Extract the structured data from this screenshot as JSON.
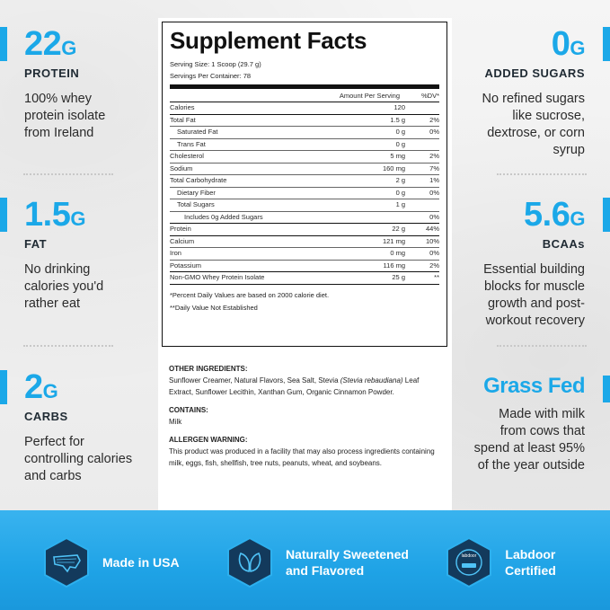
{
  "left_stats": [
    {
      "value": "22",
      "unit": "G",
      "label": "PROTEIN",
      "desc": [
        "100% whey",
        "protein isolate",
        "from Ireland"
      ]
    },
    {
      "value": "1.5",
      "unit": "G",
      "label": "FAT",
      "desc": [
        "No drinking",
        "calories you'd",
        "rather eat"
      ]
    },
    {
      "value": "2",
      "unit": "G",
      "label": "CARBS",
      "desc": [
        "Perfect for",
        "controlling calories",
        "and carbs"
      ]
    }
  ],
  "right_stats": [
    {
      "value": "0",
      "unit": "G",
      "label": "ADDED SUGARS",
      "desc": [
        "No refined sugars",
        "like sucrose,",
        "dextrose, or corn",
        "syrup"
      ]
    },
    {
      "value": "5.6",
      "unit": "G",
      "label": "BCAAs",
      "desc": [
        "Essential building",
        "blocks for muscle",
        "growth and post-",
        "workout recovery"
      ]
    },
    {
      "value": "Grass Fed",
      "unit": "",
      "label": "",
      "desc": [
        "Made with milk",
        "from cows that",
        "spend at least 95%",
        "of the year outside"
      ]
    }
  ],
  "facts": {
    "title": "Supplement Facts",
    "serving_size": "Serving Size: 1 Scoop (29.7 g)",
    "servings_per_container": "Servings Per Container: 78",
    "col_amount": "Amount Per Serving",
    "col_dv": "%DV*",
    "rows": [
      {
        "name": "Calories",
        "amount": "120",
        "dv": "",
        "indent": 0,
        "thick": true
      },
      {
        "name": "Total Fat",
        "amount": "1.5 g",
        "dv": "2%",
        "indent": 0,
        "thick": false
      },
      {
        "name": "Saturated Fat",
        "amount": "0 g",
        "dv": "0%",
        "indent": 1,
        "thick": false
      },
      {
        "name": "Trans Fat",
        "amount": "0 g",
        "dv": "",
        "indent": 1,
        "thick": false
      },
      {
        "name": "Cholesterol",
        "amount": "5 mg",
        "dv": "2%",
        "indent": 0,
        "thick": false
      },
      {
        "name": "Sodium",
        "amount": "160 mg",
        "dv": "7%",
        "indent": 0,
        "thick": false
      },
      {
        "name": "Total Carbohydrate",
        "amount": "2 g",
        "dv": "1%",
        "indent": 0,
        "thick": false
      },
      {
        "name": "Dietary Fiber",
        "amount": "0 g",
        "dv": "0%",
        "indent": 1,
        "thick": false
      },
      {
        "name": "Total Sugars",
        "amount": "1 g",
        "dv": "",
        "indent": 1,
        "thick": false
      },
      {
        "name": "Includes 0g Added Sugars",
        "amount": "",
        "dv": "0%",
        "indent": 2,
        "thick": true
      },
      {
        "name": "Protein",
        "amount": "22 g",
        "dv": "44%",
        "indent": 0,
        "thick": true
      },
      {
        "name": "Calcium",
        "amount": "121 mg",
        "dv": "10%",
        "indent": 0,
        "thick": false
      },
      {
        "name": "Iron",
        "amount": "0 mg",
        "dv": "0%",
        "indent": 0,
        "thick": false
      },
      {
        "name": "Potassium",
        "amount": "116 mg",
        "dv": "2%",
        "indent": 0,
        "thick": true
      },
      {
        "name": "Non-GMO Whey Protein Isolate",
        "amount": "25 g",
        "dv": "**",
        "indent": 0,
        "thick": true
      }
    ],
    "footnote1": "*Percent Daily Values are based on 2000 calorie diet.",
    "footnote2": "**Daily Value Not Established"
  },
  "ingredients": {
    "other_title": "OTHER INGREDIENTS:",
    "other_pre": "Sunflower Creamer, Natural Flavors, Sea Salt, Stevia ",
    "other_italic": "(Stevia rebaudiana)",
    "other_post": " Leaf Extract, Sunflower Lecithin, Xanthan Gum, Organic Cinnamon Powder.",
    "contains_title": "CONTAINS:",
    "contains": "Milk",
    "allergen_title": "ALLERGEN WARNING:",
    "allergen": "This product was produced in a facility that may also process ingredients containing milk, eggs, fish, shellfish, tree nuts, peanuts, wheat, and soybeans."
  },
  "badges": [
    {
      "icon": "usa-map-icon",
      "lines": [
        "Made in USA"
      ]
    },
    {
      "icon": "leaf-icon",
      "lines": [
        "Naturally Sweetened",
        "and Flavored"
      ]
    },
    {
      "icon": "labdoor-seal-icon",
      "lines": [
        "Labdoor",
        "Certified"
      ],
      "seal_text": "labdoor"
    }
  ],
  "colors": {
    "accent": "#1ba8e8",
    "hex_fill": "#133a5c",
    "band": "#1fa3e6"
  }
}
